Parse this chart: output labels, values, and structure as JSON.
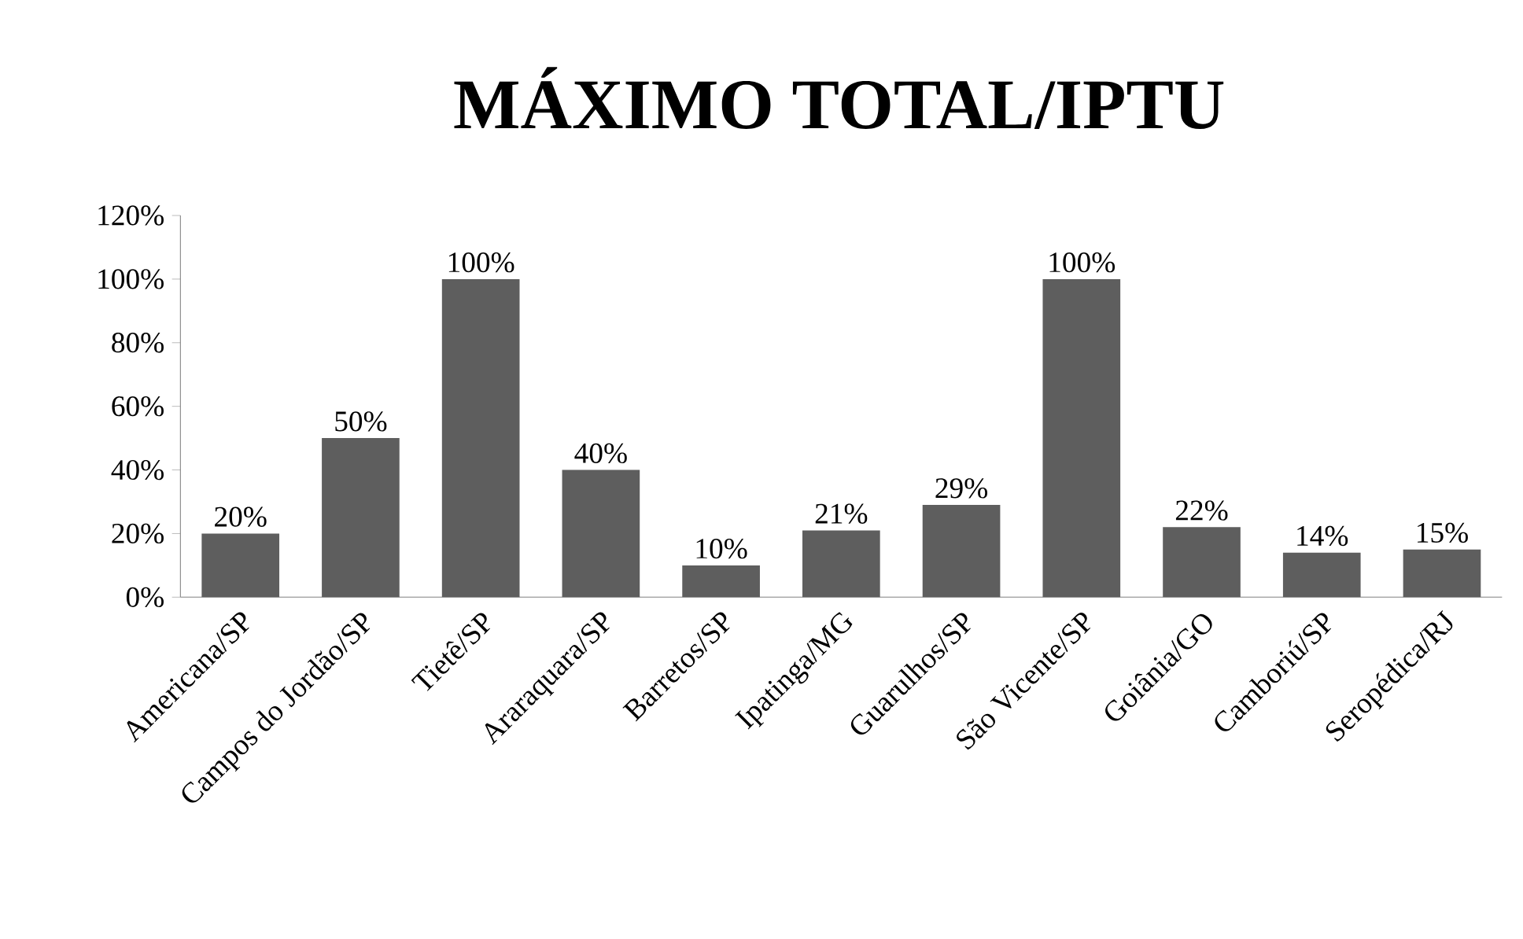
{
  "chart_data": {
    "type": "bar",
    "title": "MÁXIMO TOTAL/IPTU",
    "categories": [
      "Americana/SP",
      "Campos do Jordão/SP",
      "Tietê/SP",
      "Araraquara/SP",
      "Barretos/SP",
      "Ipatinga/MG",
      "Guarulhos/SP",
      "São Vicente/SP",
      "Goiânia/GO",
      "Camboriú/SP",
      "Seropédica/RJ"
    ],
    "values": [
      20,
      50,
      100,
      40,
      10,
      21,
      29,
      100,
      22,
      14,
      15
    ],
    "value_labels": [
      "20%",
      "50%",
      "100%",
      "40%",
      "10%",
      "21%",
      "29%",
      "100%",
      "22%",
      "14%",
      "15%"
    ],
    "color": "#5e5e5e",
    "ylim": [
      0,
      120
    ],
    "yticks": [
      {
        "value": 0,
        "label": "0%"
      },
      {
        "value": 20,
        "label": "20%"
      },
      {
        "value": 40,
        "label": "40%"
      },
      {
        "value": 60,
        "label": "60%"
      },
      {
        "value": 80,
        "label": "80%"
      },
      {
        "value": 100,
        "label": "100%"
      },
      {
        "value": 120,
        "label": "120%"
      }
    ],
    "grid": false
  }
}
